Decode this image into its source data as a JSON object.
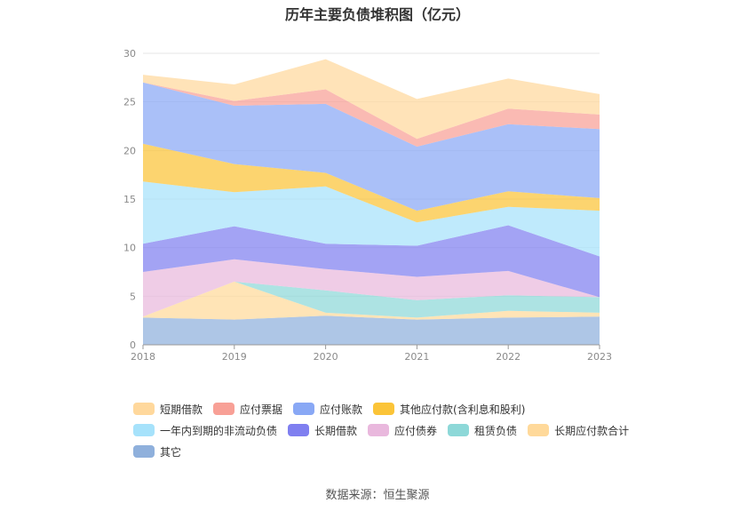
{
  "chart_data": {
    "type": "area",
    "stacked": true,
    "title": "历年主要负债堆积图（亿元）",
    "x": [
      "2018",
      "2019",
      "2020",
      "2021",
      "2022",
      "2023"
    ],
    "ylim": [
      0,
      30
    ],
    "yticks": [
      0,
      5,
      10,
      15,
      20,
      25,
      30
    ],
    "grid": true,
    "legend_position": "bottom",
    "series": [
      {
        "name": "其它",
        "color": "#8fb0dc",
        "values": [
          2.8,
          2.6,
          3.0,
          2.6,
          2.8,
          2.9
        ]
      },
      {
        "name": "长期应付款合计",
        "color": "#ffd99a",
        "values": [
          0.1,
          3.9,
          0.3,
          0.2,
          0.7,
          0.4
        ]
      },
      {
        "name": "租赁负债",
        "color": "#8dd8d8",
        "values": [
          0.0,
          0.0,
          2.3,
          1.8,
          1.6,
          1.6
        ]
      },
      {
        "name": "应付债券",
        "color": "#e9b8dd",
        "values": [
          4.6,
          2.3,
          2.2,
          2.4,
          2.5,
          0.0
        ]
      },
      {
        "name": "长期借款",
        "color": "#7f7ff0",
        "values": [
          2.9,
          3.4,
          2.6,
          3.2,
          4.7,
          4.2
        ]
      },
      {
        "name": "一年内到期的非流动负债",
        "color": "#a6e2fb",
        "values": [
          6.4,
          3.5,
          5.9,
          2.4,
          1.9,
          4.7
        ]
      },
      {
        "name": "其他应付款(含利息和股利)",
        "color": "#fbc438",
        "values": [
          3.9,
          2.9,
          1.4,
          1.2,
          1.6,
          1.3
        ]
      },
      {
        "name": "应付账款",
        "color": "#89a8f5",
        "values": [
          6.3,
          6.0,
          7.1,
          6.6,
          6.9,
          7.1
        ]
      },
      {
        "name": "应付票据",
        "color": "#f8a096",
        "values": [
          0.0,
          0.5,
          1.5,
          0.8,
          1.6,
          1.5
        ]
      },
      {
        "name": "短期借款",
        "color": "#ffd89c",
        "values": [
          0.8,
          1.7,
          3.1,
          4.1,
          3.1,
          2.1
        ]
      }
    ],
    "legend_order": [
      [
        "短期借款",
        "应付票据",
        "应付账款",
        "其他应付款(含利息和股利)"
      ],
      [
        "一年内到期的非流动负债",
        "长期借款",
        "应付债券",
        "租赁负债",
        "长期应付款合计"
      ],
      [
        "其它"
      ]
    ]
  },
  "legend_colors": {
    "短期借款": "#ffd89c",
    "应付票据": "#f8a096",
    "应付账款": "#89a8f5",
    "其他应付款(含利息和股利)": "#fbc438",
    "一年内到期的非流动负债": "#a6e2fb",
    "长期借款": "#7f7ff0",
    "应付债券": "#e9b8dd",
    "租赁负债": "#8dd8d8",
    "长期应付款合计": "#ffd99a",
    "其它": "#8fb0dc"
  },
  "source": "数据来源：恒生聚源"
}
